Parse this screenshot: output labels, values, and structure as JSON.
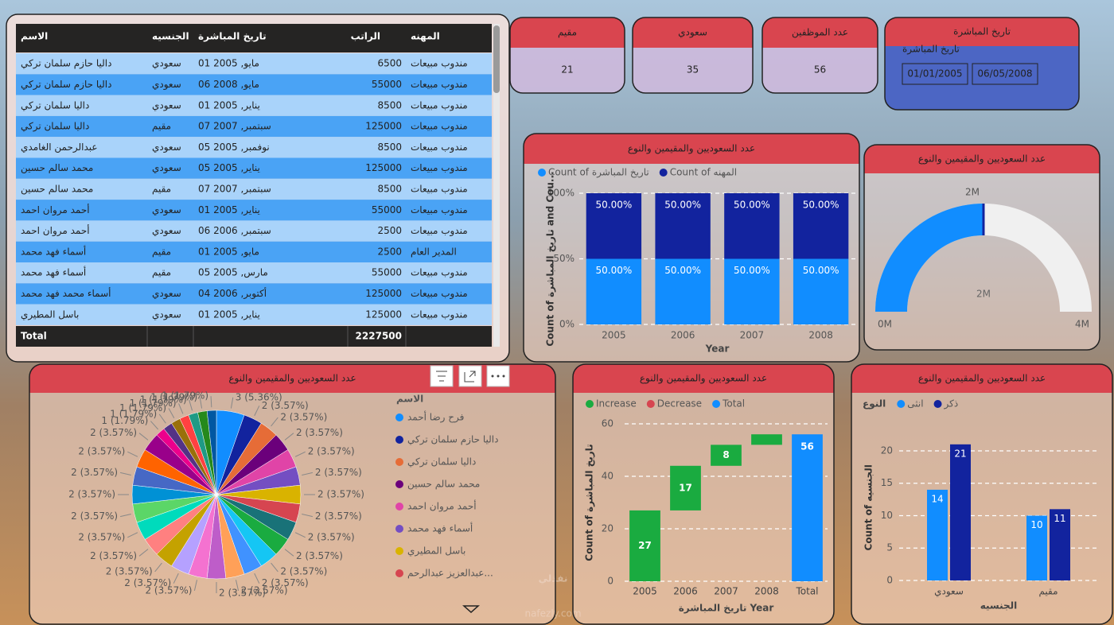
{
  "table": {
    "columns": [
      "الاسم",
      "الجنسيه",
      "تاريخ المباشرة",
      "الراتب",
      "المهنه"
    ],
    "rows": [
      [
        "داليا حازم سلمان تركي",
        "سعودي",
        "مايو, 2005 01",
        6500,
        "مندوب مبيعات"
      ],
      [
        "داليا حازم سلمان تركي",
        "سعودي",
        "مايو, 2008 06",
        55000,
        "مندوب مبيعات"
      ],
      [
        "داليا سلمان تركي",
        "سعودي",
        "يناير, 2005 01",
        8500,
        "مندوب مبيعات"
      ],
      [
        "داليا سلمان تركي",
        "مقيم",
        "سبتمبر, 2007 07",
        125000,
        "مندوب مبيعات"
      ],
      [
        "عبدالرحمن الغامدي",
        "سعودي",
        "نوفمبر, 2005 05",
        8500,
        "مندوب مبيعات"
      ],
      [
        "محمد سالم حسين",
        "سعودي",
        "يناير, 2005 05",
        125000,
        "مندوب مبيعات"
      ],
      [
        "محمد سالم حسين",
        "مقيم",
        "سبتمبر, 2007 07",
        8500,
        "مندوب مبيعات"
      ],
      [
        "أحمد مروان احمد",
        "سعودي",
        "يناير, 2005 01",
        55000,
        "مندوب مبيعات"
      ],
      [
        "أحمد مروان احمد",
        "سعودي",
        "سبتمبر, 2006 06",
        2500,
        "مندوب مبيعات"
      ],
      [
        "أسماء فهد محمد",
        "مقيم",
        "مايو, 2005 01",
        2500,
        "المدير العام"
      ],
      [
        "أسماء فهد محمد",
        "مقيم",
        "مارس, 2005 05",
        55000,
        "مندوب مبيعات"
      ],
      [
        "أسماء محمد فهد محمد",
        "سعودي",
        "أكتوبر, 2006 04",
        125000,
        "مندوب مبيعات"
      ],
      [
        "باسل المطيري",
        "سعودي",
        "يناير, 2005 01",
        125000,
        "مندوب مبيعات"
      ]
    ],
    "total": [
      "Total",
      2227500
    ]
  },
  "cards": [
    {
      "label": "مقيم",
      "value": 21
    },
    {
      "label": "سعودي",
      "value": 35
    },
    {
      "label": "عدد الموظفين",
      "value": 56
    }
  ],
  "slicer": {
    "title": "تاريخ المباشرة",
    "subtitle": "تاريخ المباشرة",
    "from": "01/01/2005",
    "to": "06/05/2008"
  },
  "watermark": {
    "logo": "نفذلي",
    "site": "nafezly.com"
  },
  "chart_data": [
    {
      "type": "stacked_bar",
      "title": "عدد السعوديين والمقيمين والنوع",
      "categories": [
        "2005",
        "2006",
        "2007",
        "2008"
      ],
      "series": [
        {
          "name": "Count of تاريخ المباشرة",
          "color": "#118dff",
          "values": [
            50,
            50,
            50,
            50
          ],
          "value_labels": [
            "50.00%",
            "50.00%",
            "50.00%",
            "50.00%"
          ]
        },
        {
          "name": "Count of المهنه",
          "color": "#12239e",
          "values": [
            50,
            50,
            50,
            50
          ],
          "value_labels": [
            "50.00%",
            "50.00%",
            "50.00%",
            "50.00%"
          ]
        }
      ],
      "ylim": [
        0,
        100
      ],
      "yticks": [
        {
          "value": 0,
          "label": "0%"
        },
        {
          "value": 50,
          "label": "50%"
        },
        {
          "value": 100,
          "label": "100%"
        }
      ],
      "xlabel": "Year",
      "ylabel": "Count of تاريخ المباشرة and Cou...",
      "grid": true
    },
    {
      "type": "gauge",
      "title": "عدد السعوديين والمقيمين والنوع",
      "value": 2000000,
      "value_label": "2M",
      "color": "#118dff",
      "target": 2000000,
      "target_label": "2M",
      "ylim": [
        0,
        4000000
      ],
      "yticks": [
        {
          "value": 0,
          "label": "0M"
        },
        {
          "value": 4000000,
          "label": "4M"
        }
      ]
    },
    {
      "type": "pie",
      "title": "عدد السعوديين والمقيمين والنوع",
      "legend_title": "الاسم",
      "categories": [
        "فرح رضا أحمد",
        "داليا حازم سلمان تركي",
        "داليا سلمان تركي",
        "محمد سالم حسين",
        "أحمد مروان احمد",
        "أسماء فهد محمد",
        "باسل المطيري",
        "عبدالعزيز عبدالرحم...",
        null,
        null,
        null,
        null,
        null,
        null,
        null,
        null,
        null,
        null,
        null,
        null,
        null,
        null,
        null,
        null,
        null,
        null,
        null,
        null,
        null,
        null,
        null
      ],
      "values": [
        3,
        2,
        2,
        2,
        2,
        2,
        2,
        2,
        2,
        2,
        2,
        2,
        2,
        2,
        2,
        2,
        2,
        2,
        2,
        2,
        2,
        2,
        2,
        2,
        1,
        1,
        1,
        1,
        1,
        1,
        1
      ],
      "value_labels": [
        "3 (5.36%)",
        "2 (3.57%)",
        "2 (3.57%)",
        "2 (3.57%)",
        "2 (3.57%)",
        "2 (3.57%)",
        "2 (3.57%)",
        "2 (3.57%)",
        "2 (3.57%)",
        "2 (3.57%)",
        "2 (3.57%)",
        "2 (3.57%)",
        "2 (3.57%)",
        "2 (3.57%)",
        "2 (3.57%)",
        "2 (3.57%)",
        "2 (3.57%)",
        "2 (3.57%)",
        "2 (3.57%)",
        "2 (3.57%)",
        "2 (3.57%)",
        "2 (3.57%)",
        "2 (3.57%)",
        "2 (3.57%)",
        "1 (1.79%)",
        "1 (1.79%)",
        "1 (1.79%)",
        "1 (1.79%)",
        "1 (1.79%)",
        "1 (1.79%)",
        "1 (1.79%)"
      ],
      "colors": [
        "#118dff",
        "#12239e",
        "#e66c37",
        "#6b007b",
        "#e044a7",
        "#744ec2",
        "#d9b300",
        "#d64550",
        "#197278",
        "#1aab40",
        "#15c6f4",
        "#4092ff",
        "#ffa058",
        "#be5dc9",
        "#f472d0",
        "#b5a1ff",
        "#c4a200",
        "#ff8080",
        "#00dbbc",
        "#5bd667",
        "#0091d5",
        "#4668c5",
        "#ff6300",
        "#99008a",
        "#ec008c",
        "#533285",
        "#99700a",
        "#ff4141",
        "#1f9a85",
        "#25891c",
        "#0057a2"
      ]
    },
    {
      "type": "waterfall",
      "title": "عدد السعوديين والمقيمين والنوع",
      "categories": [
        "2005",
        "2006",
        "2007",
        "2008",
        "Total"
      ],
      "values": [
        27,
        17,
        8,
        4,
        56
      ],
      "series": [
        {
          "name": "Increase",
          "color": "#1aab40"
        },
        {
          "name": "Decrease",
          "color": "#d64550"
        },
        {
          "name": "Total",
          "color": "#118dff"
        }
      ],
      "ylim": [
        0,
        60
      ],
      "yticks": [
        0,
        20,
        40,
        60
      ],
      "xlabel": "تاريخ المباشرة Year",
      "ylabel": "Count of تاريخ المباشرة",
      "grid": true
    },
    {
      "type": "bar",
      "title": "عدد السعوديين والمقيمين والنوع",
      "legend_title": "النوع",
      "categories": [
        "سعودي",
        "مقيم"
      ],
      "series": [
        {
          "name": "انثى",
          "color": "#118dff",
          "values": [
            14,
            10
          ]
        },
        {
          "name": "ذكر",
          "color": "#12239e",
          "values": [
            21,
            11
          ]
        }
      ],
      "ylim": [
        0,
        22.5
      ],
      "yticks": [
        0,
        5,
        10,
        15,
        20
      ],
      "xlabel": "الجنسيه",
      "ylabel": "Count of الجنسيه",
      "grid": true
    }
  ]
}
